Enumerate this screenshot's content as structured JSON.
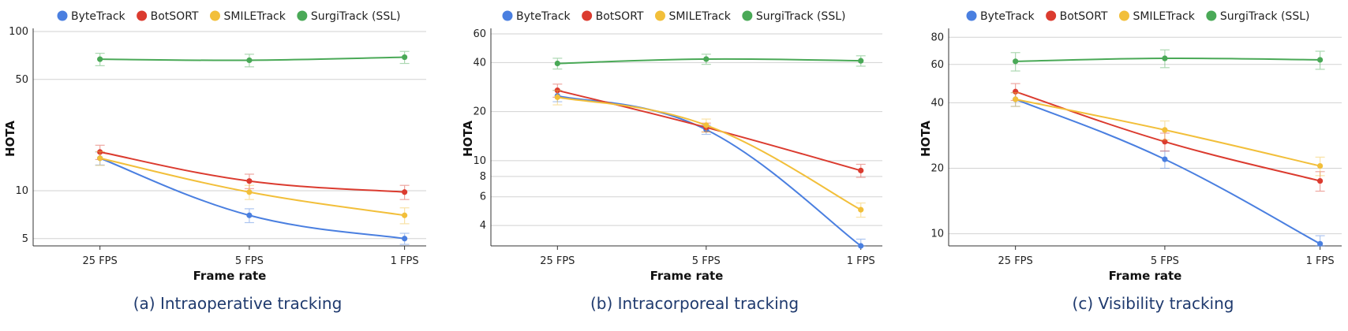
{
  "chart_data": [
    {
      "type": "line",
      "title": "(a) Intraoperative tracking",
      "xlabel": "Frame rate",
      "ylabel": "HOTA",
      "yscale": "log",
      "ylim": [
        4.5,
        100
      ],
      "yticks": [
        5,
        10,
        50,
        100
      ],
      "categories": [
        "25 FPS",
        "5 FPS",
        "1 FPS"
      ],
      "legend": "top",
      "grid": "horizontal",
      "series": [
        {
          "name": "ByteTrack",
          "color": "#4a7fe0",
          "values": [
            16.0,
            7.0,
            5.0
          ],
          "err": [
            1.5,
            0.7,
            0.4
          ]
        },
        {
          "name": "BotSORT",
          "color": "#db3b2f",
          "values": [
            17.5,
            11.5,
            9.8
          ],
          "err": [
            1.8,
            1.2,
            1.0
          ]
        },
        {
          "name": "SMILETrack",
          "color": "#f2bf3a",
          "values": [
            16.0,
            9.8,
            7.0
          ],
          "err": [
            1.6,
            1.0,
            0.8
          ]
        },
        {
          "name": "SurgiTrack (SSL)",
          "color": "#4aa957",
          "values": [
            67.0,
            66.0,
            69.0
          ],
          "err": [
            6.0,
            6.0,
            6.0
          ]
        }
      ]
    },
    {
      "type": "line",
      "title": "(b) Intracorporeal tracking",
      "xlabel": "Frame rate",
      "ylabel": "HOTA",
      "yscale": "log",
      "ylim": [
        3,
        62
      ],
      "yticks": [
        4,
        6,
        8,
        10,
        20,
        40,
        60
      ],
      "categories": [
        "25 FPS",
        "5 FPS",
        "1 FPS"
      ],
      "legend": "top",
      "grid": "horizontal",
      "series": [
        {
          "name": "ByteTrack",
          "color": "#4a7fe0",
          "values": [
            25.0,
            15.5,
            3.0
          ],
          "err": [
            2.0,
            1.0,
            0.3
          ]
        },
        {
          "name": "BotSORT",
          "color": "#db3b2f",
          "values": [
            27.0,
            16.0,
            8.7
          ],
          "err": [
            2.5,
            1.0,
            0.8
          ]
        },
        {
          "name": "SMILETrack",
          "color": "#f2bf3a",
          "values": [
            24.5,
            16.5,
            5.0
          ],
          "err": [
            2.5,
            1.5,
            0.5
          ]
        },
        {
          "name": "SurgiTrack (SSL)",
          "color": "#4aa957",
          "values": [
            39.5,
            42.0,
            41.0
          ],
          "err": [
            3.0,
            3.0,
            3.0
          ]
        }
      ]
    },
    {
      "type": "line",
      "title": "(c) Visibility tracking",
      "xlabel": "Frame rate",
      "ylabel": "HOTA",
      "yscale": "log",
      "ylim": [
        8.8,
        85
      ],
      "yticks": [
        10,
        20,
        40,
        60,
        80
      ],
      "categories": [
        "25 FPS",
        "5 FPS",
        "1 FPS"
      ],
      "legend": "top",
      "grid": "horizontal",
      "series": [
        {
          "name": "ByteTrack",
          "color": "#4a7fe0",
          "values": [
            41.5,
            22.0,
            9.0
          ],
          "err": [
            3.0,
            2.0,
            0.8
          ]
        },
        {
          "name": "BotSORT",
          "color": "#db3b2f",
          "values": [
            45.0,
            26.5,
            17.5
          ],
          "err": [
            4.0,
            2.5,
            1.8
          ]
        },
        {
          "name": "SMILETrack",
          "color": "#f2bf3a",
          "values": [
            41.5,
            30.0,
            20.5
          ],
          "err": [
            3.0,
            3.0,
            2.0
          ]
        },
        {
          "name": "SurgiTrack (SSL)",
          "color": "#4aa957",
          "values": [
            62.0,
            64.0,
            63.0
          ],
          "err": [
            6.0,
            6.0,
            6.0
          ]
        }
      ]
    }
  ]
}
